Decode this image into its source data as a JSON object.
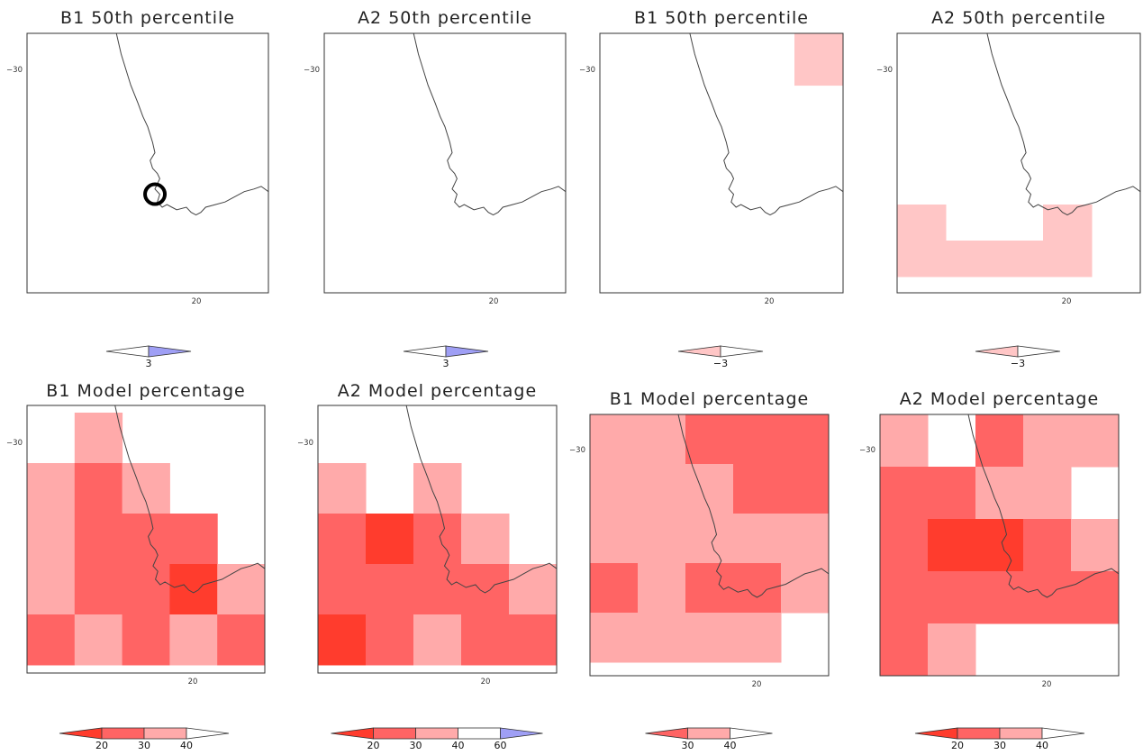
{
  "colors": {
    "p20": "#ff3c2d",
    "p30": "#ff6464",
    "p40": "#ffaaaa",
    "pale": "#ffc6c6",
    "blue": "#9f9ff5",
    "coast": "#444444",
    "frame": "#333333"
  },
  "chart_data": [
    {
      "type": "heatmap",
      "title": "B1 50th percentile",
      "ytick": "−30",
      "xtick": "20",
      "cells": [],
      "marker": "circle",
      "colorbar": {
        "ticks": [
          "3"
        ],
        "left_tip": "#ffffff",
        "right_tip": "blue"
      }
    },
    {
      "type": "heatmap",
      "title": "A2 50th percentile",
      "ytick": "−30",
      "xtick": "20",
      "cells": [],
      "colorbar": {
        "ticks": [
          "3"
        ],
        "left_tip": "#ffffff",
        "right_tip": "blue"
      }
    },
    {
      "type": "heatmap",
      "title": "B1 50th percentile",
      "ytick": "−30",
      "xtick": "20",
      "cells": [
        [
          0,
          4,
          "pale"
        ]
      ],
      "colorbar": {
        "ticks": [
          "−3"
        ],
        "left_tip": "pale",
        "right_tip": "#ffffff"
      }
    },
    {
      "type": "heatmap",
      "title": "A2 50th percentile",
      "ytick": "−30",
      "xtick": "20",
      "cells": [
        [
          2,
          0,
          "pale"
        ],
        [
          2,
          3,
          "pale"
        ],
        [
          3,
          0,
          "pale"
        ],
        [
          3,
          1,
          "pale"
        ],
        [
          3,
          2,
          "pale"
        ],
        [
          3,
          3,
          "pale"
        ]
      ],
      "colorbar": {
        "ticks": [
          "−3"
        ],
        "left_tip": "pale",
        "right_tip": "#ffffff"
      }
    },
    {
      "type": "heatmap",
      "title": "B1 Model percentage",
      "ytick": "−30",
      "xtick": "20",
      "cells": [
        [
          0,
          1,
          "p40"
        ],
        [
          1,
          0,
          "p40"
        ],
        [
          1,
          1,
          "p30"
        ],
        [
          1,
          2,
          "p40"
        ],
        [
          2,
          0,
          "p40"
        ],
        [
          2,
          1,
          "p30"
        ],
        [
          2,
          2,
          "p30"
        ],
        [
          2,
          3,
          "p30"
        ],
        [
          3,
          0,
          "p40"
        ],
        [
          3,
          1,
          "p30"
        ],
        [
          3,
          2,
          "p30"
        ],
        [
          3,
          3,
          "p20"
        ],
        [
          3,
          4,
          "p40"
        ],
        [
          4,
          0,
          "p30"
        ],
        [
          4,
          1,
          "p40"
        ],
        [
          4,
          2,
          "p30"
        ],
        [
          4,
          3,
          "p40"
        ],
        [
          4,
          4,
          "p30"
        ]
      ],
      "colorbar": {
        "ticks": [
          "20",
          "30",
          "40"
        ],
        "left_tip": "p20",
        "right_tip": "#ffffff"
      }
    },
    {
      "type": "heatmap",
      "title": "A2 Model percentage",
      "ytick": "−30",
      "xtick": "20",
      "cells": [
        [
          1,
          0,
          "p40"
        ],
        [
          1,
          2,
          "p40"
        ],
        [
          2,
          0,
          "p30"
        ],
        [
          2,
          1,
          "p20"
        ],
        [
          2,
          2,
          "p30"
        ],
        [
          2,
          3,
          "p40"
        ],
        [
          3,
          0,
          "p30"
        ],
        [
          3,
          1,
          "p30"
        ],
        [
          3,
          2,
          "p30"
        ],
        [
          3,
          3,
          "p30"
        ],
        [
          3,
          4,
          "p40"
        ],
        [
          4,
          0,
          "p20"
        ],
        [
          4,
          1,
          "p30"
        ],
        [
          4,
          2,
          "p40"
        ],
        [
          4,
          3,
          "p30"
        ],
        [
          4,
          4,
          "p30"
        ]
      ],
      "colorbar": {
        "ticks": [
          "20",
          "30",
          "40",
          "60"
        ],
        "left_tip": "p20",
        "right_tip": "blue"
      }
    },
    {
      "type": "heatmap",
      "title": "B1 Model percentage",
      "ytick": "−30",
      "xtick": "20",
      "cells": [
        [
          0,
          0,
          "p40"
        ],
        [
          0,
          1,
          "p40"
        ],
        [
          0,
          2,
          "p30"
        ],
        [
          0,
          3,
          "p30"
        ],
        [
          0,
          4,
          "p30"
        ],
        [
          1,
          0,
          "p40"
        ],
        [
          1,
          1,
          "p40"
        ],
        [
          1,
          2,
          "p40"
        ],
        [
          1,
          3,
          "p30"
        ],
        [
          1,
          4,
          "p30"
        ],
        [
          2,
          0,
          "p40"
        ],
        [
          2,
          1,
          "p40"
        ],
        [
          2,
          2,
          "p40"
        ],
        [
          2,
          3,
          "p40"
        ],
        [
          2,
          4,
          "p40"
        ],
        [
          3,
          0,
          "p30"
        ],
        [
          3,
          1,
          "p40"
        ],
        [
          3,
          2,
          "p30"
        ],
        [
          3,
          3,
          "p30"
        ],
        [
          3,
          4,
          "p40"
        ],
        [
          4,
          0,
          "p40"
        ],
        [
          4,
          1,
          "p40"
        ],
        [
          4,
          2,
          "p40"
        ],
        [
          4,
          3,
          "p40"
        ]
      ],
      "colorbar": {
        "ticks": [
          "30",
          "40"
        ],
        "left_tip": "p30",
        "right_tip": "#ffffff"
      }
    },
    {
      "type": "heatmap",
      "title": "A2 Model percentage",
      "ytick": "−30",
      "xtick": "20",
      "cells": [
        [
          0,
          0,
          "p40"
        ],
        [
          0,
          2,
          "p30"
        ],
        [
          0,
          3,
          "p40"
        ],
        [
          0,
          4,
          "p40"
        ],
        [
          1,
          0,
          "p30"
        ],
        [
          1,
          1,
          "p30"
        ],
        [
          1,
          2,
          "p40"
        ],
        [
          1,
          3,
          "p40"
        ],
        [
          2,
          0,
          "p30"
        ],
        [
          2,
          1,
          "p20"
        ],
        [
          2,
          2,
          "p20"
        ],
        [
          2,
          3,
          "p30"
        ],
        [
          2,
          4,
          "p40"
        ],
        [
          3,
          0,
          "p30"
        ],
        [
          3,
          1,
          "p30"
        ],
        [
          3,
          2,
          "p30"
        ],
        [
          3,
          3,
          "p30"
        ],
        [
          3,
          4,
          "p30"
        ],
        [
          4,
          0,
          "p30"
        ],
        [
          4,
          1,
          "p40"
        ]
      ],
      "colorbar": {
        "ticks": [
          "20",
          "30",
          "40"
        ],
        "left_tip": "p20",
        "right_tip": "#ffffff"
      }
    }
  ]
}
